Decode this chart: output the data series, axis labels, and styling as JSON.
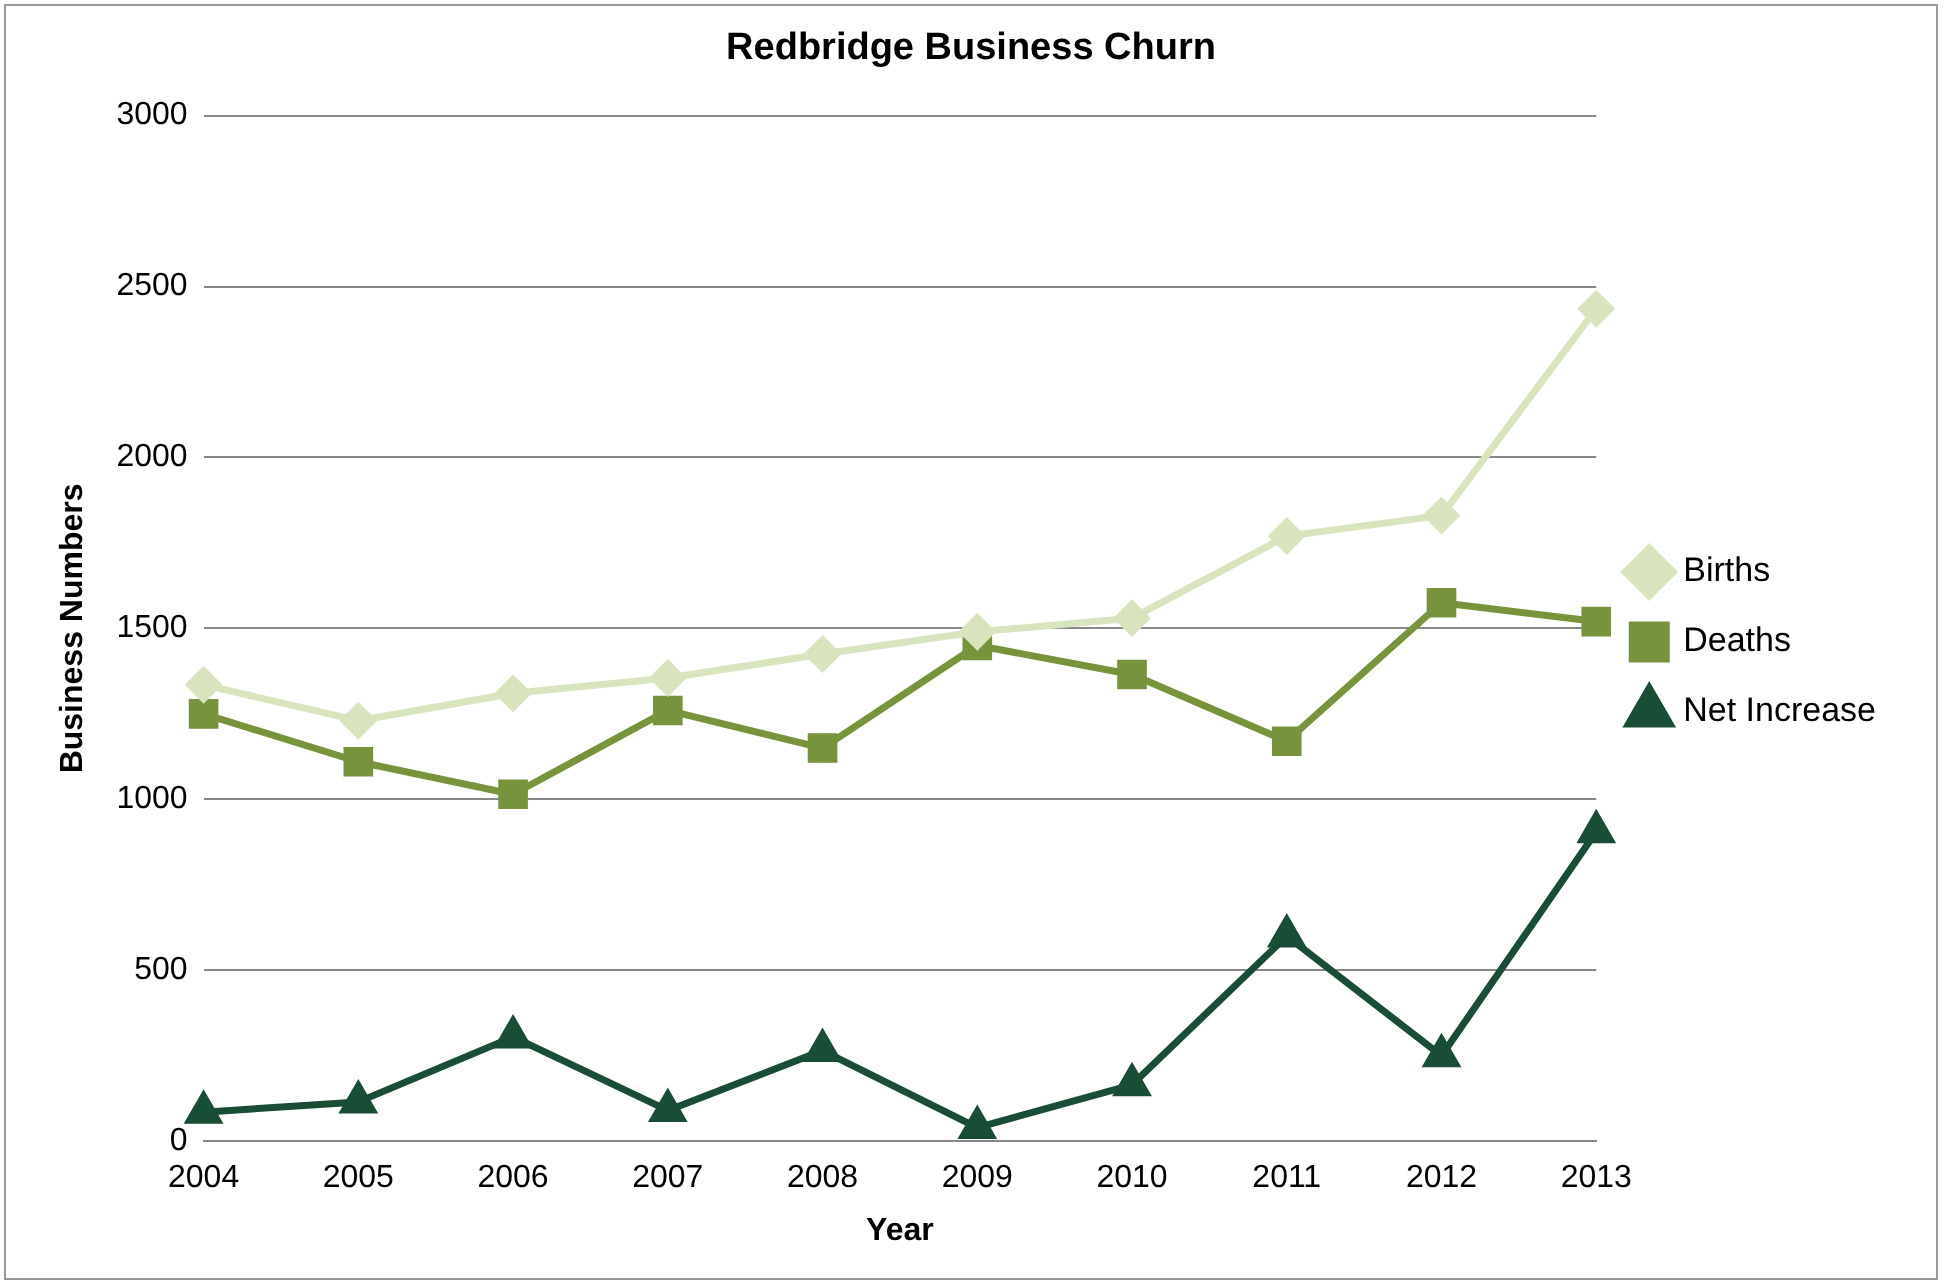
{
  "chart_data": {
    "type": "line",
    "title": "Redbridge Business Churn",
    "xlabel": "Year",
    "ylabel": "Business Numbers",
    "categories": [
      "2004",
      "2005",
      "2006",
      "2007",
      "2008",
      "2009",
      "2010",
      "2011",
      "2012",
      "2013"
    ],
    "series": [
      {
        "name": "Births",
        "color": "#d7e4bd",
        "marker": "diamond",
        "values": [
          1335,
          1230,
          1310,
          1355,
          1425,
          1490,
          1530,
          1770,
          1830,
          2435
        ]
      },
      {
        "name": "Deaths",
        "color": "#77933c",
        "marker": "square",
        "values": [
          1250,
          1110,
          1015,
          1260,
          1150,
          1450,
          1365,
          1170,
          1575,
          1520
        ]
      },
      {
        "name": "Net Increase",
        "color": "#1a4d36",
        "marker": "triangle",
        "values": [
          85,
          115,
          305,
          90,
          265,
          40,
          165,
          600,
          250,
          905
        ]
      }
    ],
    "ylim": [
      0,
      3000
    ],
    "yticks": [
      0,
      500,
      1000,
      1500,
      2000,
      2500,
      3000
    ],
    "grid": "y",
    "legend": "right",
    "line_style": "solid"
  }
}
